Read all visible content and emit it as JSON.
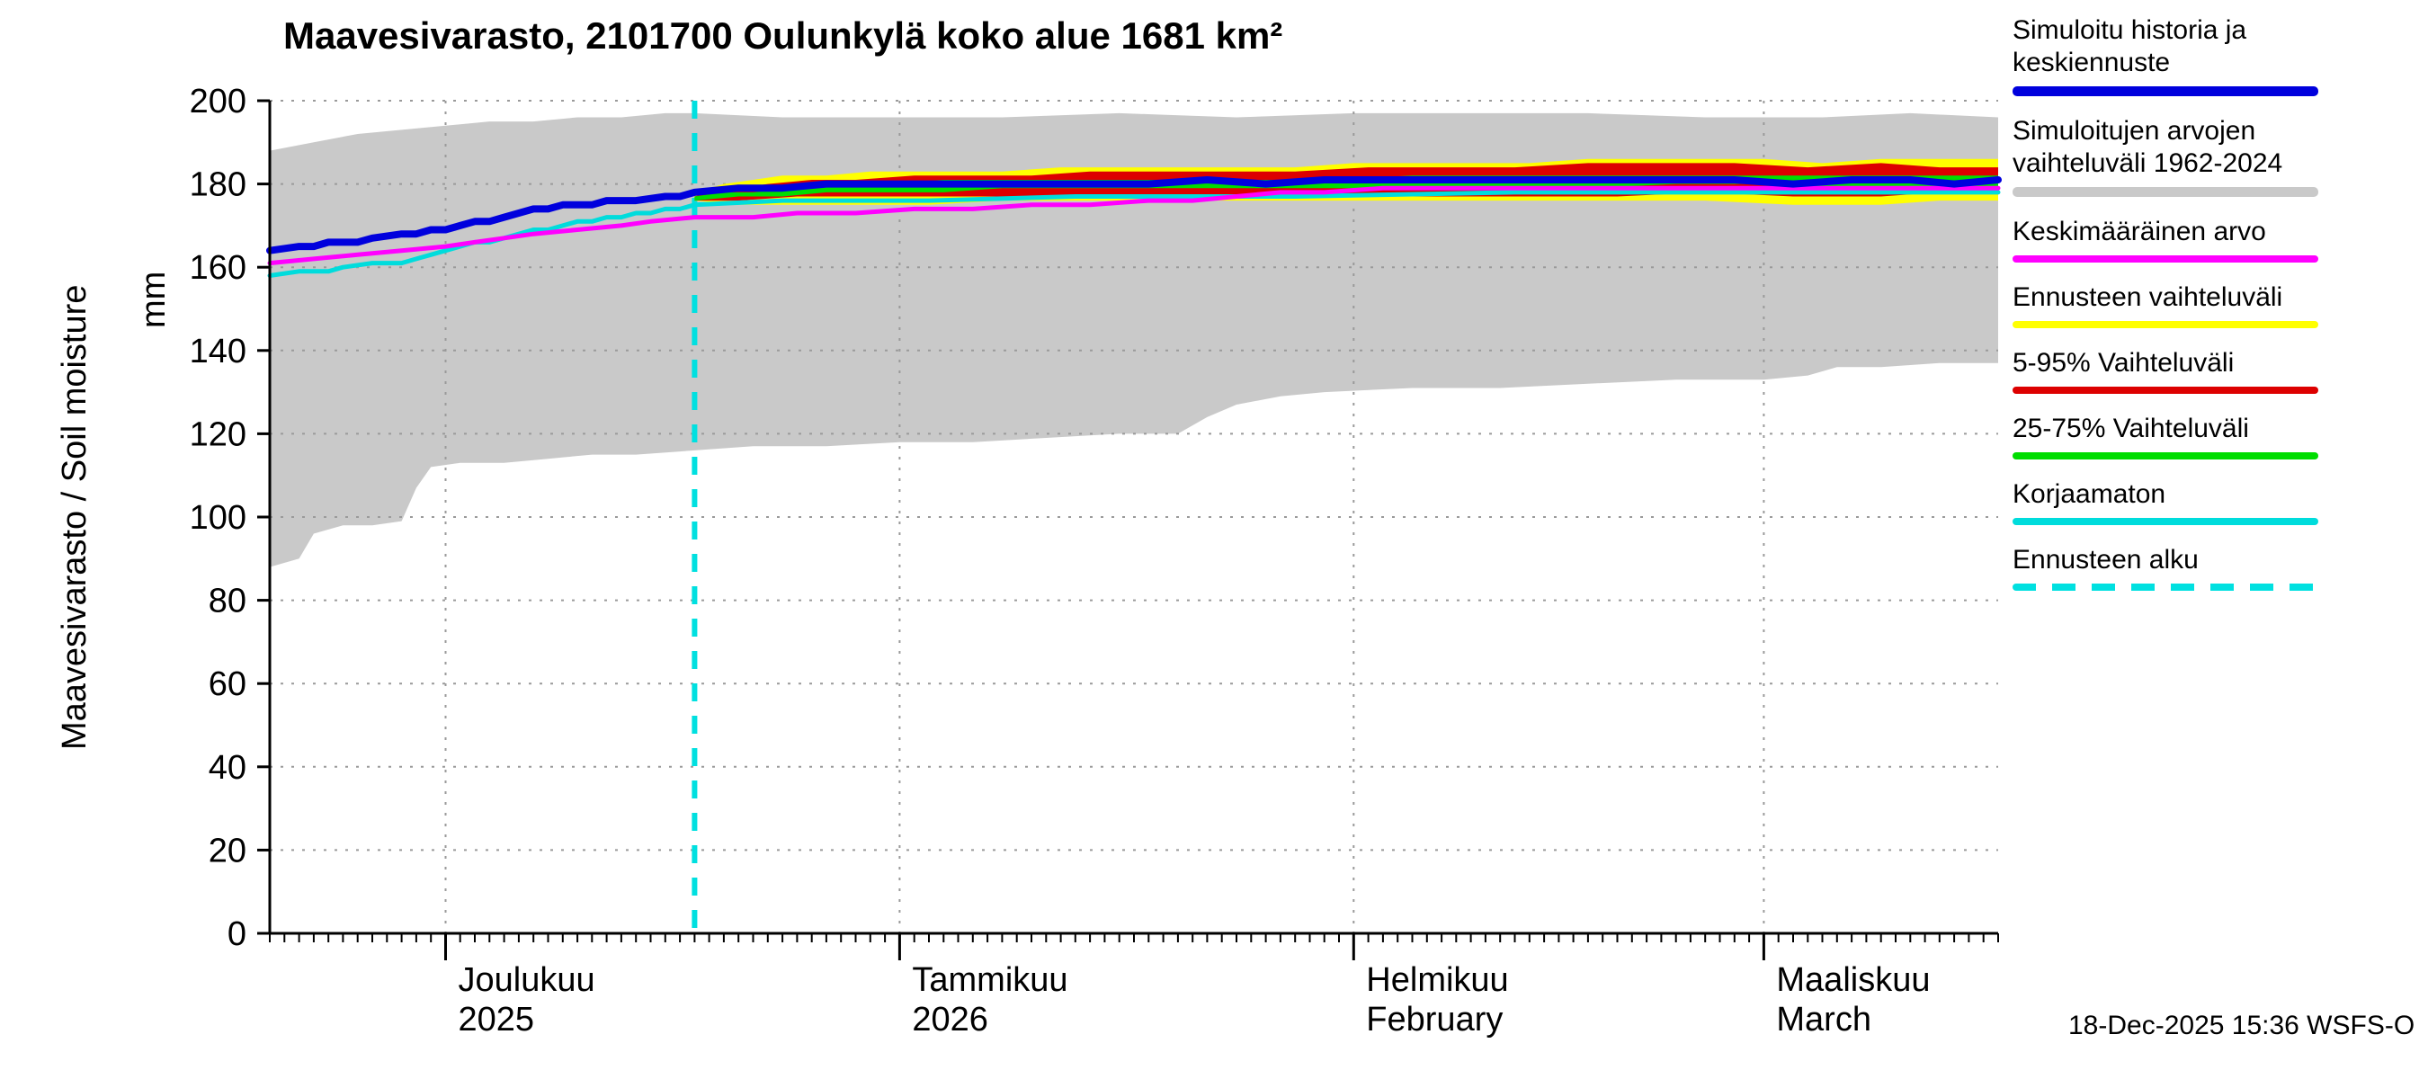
{
  "title": "Maavesivarasto, 2101700 Oulunkylä koko alue 1681 km²",
  "y_axis": {
    "label": "Maavesivarasto / Soil moisture",
    "unit": "mm"
  },
  "timestamp": "18-Dec-2025 15:36 WSFS-O",
  "colors": {
    "history_mean": "#0000dd",
    "sim_range": "#c9c9c9",
    "average": "#ff00ff",
    "forecast_range": "#ffff00",
    "range_5_95": "#dd0000",
    "range_25_75": "#00dd00",
    "uncorrected": "#00dcdc",
    "forecast_start": "#00e0e0"
  },
  "legend": [
    {
      "label": "Simuloitu historia ja keskiennuste",
      "color": "#0000dd",
      "thickness": 11,
      "dash": false
    },
    {
      "label": "Simuloitujen arvojen vaihteluväli 1962-2024",
      "color": "#c9c9c9",
      "thickness": 11,
      "dash": false
    },
    {
      "label": "Keskimääräinen arvo",
      "color": "#ff00ff",
      "thickness": 8,
      "dash": false
    },
    {
      "label": "Ennusteen vaihteluväli",
      "color": "#ffff00",
      "thickness": 8,
      "dash": false
    },
    {
      "label": "5-95% Vaihteluväli",
      "color": "#dd0000",
      "thickness": 8,
      "dash": false
    },
    {
      "label": "25-75% Vaihteluväli",
      "color": "#00dd00",
      "thickness": 8,
      "dash": false
    },
    {
      "label": "Korjaamaton",
      "color": "#00dcdc",
      "thickness": 8,
      "dash": false
    },
    {
      "label": "Ennusteen alku",
      "color": "#00e0e0",
      "thickness": 8,
      "dash": true
    }
  ],
  "chart_data": {
    "type": "line",
    "title": "Maavesivarasto, 2101700 Oulunkylä koko alue 1681 km²",
    "ylabel": "Maavesivarasto / Soil moisture (mm)",
    "ylim": [
      0,
      200
    ],
    "y_ticks": [
      0,
      20,
      40,
      60,
      80,
      100,
      120,
      140,
      160,
      180,
      200
    ],
    "x_total_days": 118,
    "forecast_start_day": 29,
    "forecast_start_date": "18-Dec-2025",
    "x_months": [
      {
        "label": "Joulukuu",
        "sublabel": "2025",
        "day": 12
      },
      {
        "label": "Tammikuu",
        "sublabel": "2026",
        "day": 43
      },
      {
        "label": "Helmikuu",
        "sublabel": "February",
        "day": 74
      },
      {
        "label": "Maaliskuu",
        "sublabel": "March",
        "day": 102
      }
    ],
    "forecast_line": {
      "color": "#00e0e0",
      "width": 6,
      "dash": [
        20,
        16
      ]
    },
    "bands": [
      {
        "name": "simulated-range-1962-2024",
        "color": "#c9c9c9",
        "top": [
          [
            0,
            188
          ],
          [
            3,
            190
          ],
          [
            6,
            192
          ],
          [
            9,
            193
          ],
          [
            12,
            194
          ],
          [
            15,
            195
          ],
          [
            18,
            195
          ],
          [
            21,
            196
          ],
          [
            24,
            196
          ],
          [
            27,
            197
          ],
          [
            29,
            197
          ],
          [
            35,
            196
          ],
          [
            42,
            196
          ],
          [
            50,
            196
          ],
          [
            58,
            197
          ],
          [
            66,
            196
          ],
          [
            74,
            197
          ],
          [
            82,
            197
          ],
          [
            90,
            197
          ],
          [
            98,
            196
          ],
          [
            106,
            196
          ],
          [
            112,
            197
          ],
          [
            118,
            196
          ]
        ],
        "bottom": [
          [
            0,
            88
          ],
          [
            2,
            90
          ],
          [
            3,
            96
          ],
          [
            5,
            98
          ],
          [
            7,
            98
          ],
          [
            9,
            99
          ],
          [
            10,
            107
          ],
          [
            11,
            112
          ],
          [
            13,
            113
          ],
          [
            16,
            113
          ],
          [
            19,
            114
          ],
          [
            22,
            115
          ],
          [
            25,
            115
          ],
          [
            29,
            116
          ],
          [
            33,
            117
          ],
          [
            38,
            117
          ],
          [
            43,
            118
          ],
          [
            48,
            118
          ],
          [
            53,
            119
          ],
          [
            58,
            120
          ],
          [
            62,
            120
          ],
          [
            64,
            124
          ],
          [
            66,
            127
          ],
          [
            69,
            129
          ],
          [
            72,
            130
          ],
          [
            78,
            131
          ],
          [
            84,
            131
          ],
          [
            90,
            132
          ],
          [
            96,
            133
          ],
          [
            102,
            133
          ],
          [
            105,
            134
          ],
          [
            107,
            136
          ],
          [
            110,
            136
          ],
          [
            114,
            137
          ],
          [
            118,
            137
          ]
        ]
      },
      {
        "name": "forecast-range",
        "color": "#ffff00",
        "top": [
          [
            29,
            178
          ],
          [
            30,
            179
          ],
          [
            31,
            180
          ],
          [
            33,
            181
          ],
          [
            35,
            182
          ],
          [
            38,
            182
          ],
          [
            41,
            183
          ],
          [
            45,
            183
          ],
          [
            50,
            183
          ],
          [
            54,
            184
          ],
          [
            58,
            184
          ],
          [
            62,
            184
          ],
          [
            66,
            184
          ],
          [
            70,
            184
          ],
          [
            74,
            185
          ],
          [
            78,
            185
          ],
          [
            82,
            185
          ],
          [
            86,
            185
          ],
          [
            90,
            186
          ],
          [
            94,
            186
          ],
          [
            98,
            186
          ],
          [
            102,
            186
          ],
          [
            106,
            185
          ],
          [
            110,
            186
          ],
          [
            114,
            186
          ],
          [
            118,
            186
          ]
        ],
        "bottom": [
          [
            29,
            176
          ],
          [
            32,
            175
          ],
          [
            36,
            175
          ],
          [
            40,
            175
          ],
          [
            45,
            175
          ],
          [
            50,
            176
          ],
          [
            56,
            176
          ],
          [
            62,
            176
          ],
          [
            68,
            176
          ],
          [
            74,
            176
          ],
          [
            80,
            176
          ],
          [
            86,
            176
          ],
          [
            92,
            176
          ],
          [
            98,
            176
          ],
          [
            104,
            175
          ],
          [
            110,
            175
          ],
          [
            114,
            176
          ],
          [
            118,
            176
          ]
        ]
      },
      {
        "name": "range-5-95",
        "color": "#dd0000",
        "top": [
          [
            29,
            177
          ],
          [
            30,
            178
          ],
          [
            32,
            179
          ],
          [
            34,
            180
          ],
          [
            37,
            181
          ],
          [
            40,
            181
          ],
          [
            44,
            182
          ],
          [
            48,
            182
          ],
          [
            52,
            182
          ],
          [
            56,
            183
          ],
          [
            60,
            183
          ],
          [
            65,
            183
          ],
          [
            70,
            183
          ],
          [
            75,
            184
          ],
          [
            80,
            184
          ],
          [
            85,
            184
          ],
          [
            90,
            185
          ],
          [
            95,
            185
          ],
          [
            100,
            185
          ],
          [
            105,
            184
          ],
          [
            110,
            185
          ],
          [
            114,
            184
          ],
          [
            118,
            184
          ]
        ],
        "bottom": [
          [
            29,
            176
          ],
          [
            32,
            176
          ],
          [
            36,
            177
          ],
          [
            40,
            177
          ],
          [
            45,
            177
          ],
          [
            50,
            177
          ],
          [
            56,
            177
          ],
          [
            62,
            177
          ],
          [
            68,
            177
          ],
          [
            74,
            177
          ],
          [
            80,
            177
          ],
          [
            86,
            177
          ],
          [
            92,
            177
          ],
          [
            98,
            178
          ],
          [
            104,
            177
          ],
          [
            110,
            177
          ],
          [
            114,
            178
          ],
          [
            118,
            178
          ]
        ]
      },
      {
        "name": "range-25-75",
        "color": "#00dd00",
        "top": [
          [
            29,
            177
          ],
          [
            31,
            178
          ],
          [
            33,
            178
          ],
          [
            36,
            179
          ],
          [
            39,
            180
          ],
          [
            42,
            180
          ],
          [
            46,
            181
          ],
          [
            50,
            181
          ],
          [
            55,
            181
          ],
          [
            60,
            181
          ],
          [
            66,
            181
          ],
          [
            72,
            181
          ],
          [
            78,
            182
          ],
          [
            84,
            182
          ],
          [
            90,
            182
          ],
          [
            96,
            182
          ],
          [
            102,
            182
          ],
          [
            108,
            182
          ],
          [
            114,
            182
          ],
          [
            118,
            182
          ]
        ],
        "bottom": [
          [
            29,
            176
          ],
          [
            32,
            177
          ],
          [
            35,
            177
          ],
          [
            38,
            178
          ],
          [
            42,
            178
          ],
          [
            46,
            178
          ],
          [
            50,
            179
          ],
          [
            55,
            179
          ],
          [
            60,
            179
          ],
          [
            66,
            179
          ],
          [
            72,
            179
          ],
          [
            78,
            179
          ],
          [
            84,
            179
          ],
          [
            90,
            179
          ],
          [
            96,
            180
          ],
          [
            102,
            180
          ],
          [
            108,
            179
          ],
          [
            114,
            179
          ],
          [
            118,
            179
          ]
        ]
      }
    ],
    "lines": [
      {
        "name": "uncorrected",
        "color": "#00dcdc",
        "width": 5,
        "points": [
          [
            0,
            158
          ],
          [
            2,
            159
          ],
          [
            4,
            159
          ],
          [
            5,
            160
          ],
          [
            7,
            161
          ],
          [
            9,
            161
          ],
          [
            10,
            162
          ],
          [
            11,
            163
          ],
          [
            12,
            164
          ],
          [
            13,
            165
          ],
          [
            14,
            166
          ],
          [
            15,
            166
          ],
          [
            16,
            167
          ],
          [
            17,
            168
          ],
          [
            18,
            169
          ],
          [
            19,
            169
          ],
          [
            20,
            170
          ],
          [
            21,
            171
          ],
          [
            22,
            171
          ],
          [
            23,
            172
          ],
          [
            24,
            172
          ],
          [
            25,
            173
          ],
          [
            26,
            173
          ],
          [
            27,
            174
          ],
          [
            28,
            174
          ],
          [
            29,
            175
          ],
          [
            35,
            176
          ],
          [
            45,
            176
          ],
          [
            55,
            177
          ],
          [
            70,
            177
          ],
          [
            85,
            178
          ],
          [
            100,
            178
          ],
          [
            118,
            178
          ]
        ]
      },
      {
        "name": "average",
        "color": "#ff00ff",
        "width": 5,
        "points": [
          [
            0,
            161
          ],
          [
            3,
            162
          ],
          [
            6,
            163
          ],
          [
            9,
            164
          ],
          [
            12,
            165
          ],
          [
            14,
            166
          ],
          [
            16,
            167
          ],
          [
            18,
            168
          ],
          [
            21,
            169
          ],
          [
            24,
            170
          ],
          [
            26,
            171
          ],
          [
            29,
            172
          ],
          [
            33,
            172
          ],
          [
            36,
            173
          ],
          [
            40,
            173
          ],
          [
            44,
            174
          ],
          [
            48,
            174
          ],
          [
            52,
            175
          ],
          [
            56,
            175
          ],
          [
            60,
            176
          ],
          [
            63,
            176
          ],
          [
            66,
            177
          ],
          [
            69,
            178
          ],
          [
            72,
            178
          ],
          [
            76,
            179
          ],
          [
            82,
            179
          ],
          [
            90,
            179
          ],
          [
            100,
            179
          ],
          [
            110,
            179
          ],
          [
            118,
            179
          ]
        ]
      },
      {
        "name": "simulated-history-and-mean-forecast",
        "color": "#0000dd",
        "width": 8,
        "points": [
          [
            0,
            164
          ],
          [
            2,
            165
          ],
          [
            3,
            165
          ],
          [
            4,
            166
          ],
          [
            6,
            166
          ],
          [
            7,
            167
          ],
          [
            9,
            168
          ],
          [
            10,
            168
          ],
          [
            11,
            169
          ],
          [
            12,
            169
          ],
          [
            13,
            170
          ],
          [
            14,
            171
          ],
          [
            15,
            171
          ],
          [
            16,
            172
          ],
          [
            17,
            173
          ],
          [
            18,
            174
          ],
          [
            19,
            174
          ],
          [
            20,
            175
          ],
          [
            22,
            175
          ],
          [
            23,
            176
          ],
          [
            25,
            176
          ],
          [
            27,
            177
          ],
          [
            28,
            177
          ],
          [
            29,
            178
          ],
          [
            32,
            179
          ],
          [
            35,
            179
          ],
          [
            38,
            180
          ],
          [
            42,
            180
          ],
          [
            46,
            180
          ],
          [
            50,
            180
          ],
          [
            55,
            180
          ],
          [
            60,
            180
          ],
          [
            64,
            181
          ],
          [
            68,
            180
          ],
          [
            72,
            181
          ],
          [
            76,
            181
          ],
          [
            80,
            181
          ],
          [
            85,
            181
          ],
          [
            90,
            181
          ],
          [
            95,
            181
          ],
          [
            100,
            181
          ],
          [
            104,
            180
          ],
          [
            108,
            181
          ],
          [
            112,
            181
          ],
          [
            115,
            180
          ],
          [
            118,
            181
          ]
        ]
      }
    ]
  }
}
